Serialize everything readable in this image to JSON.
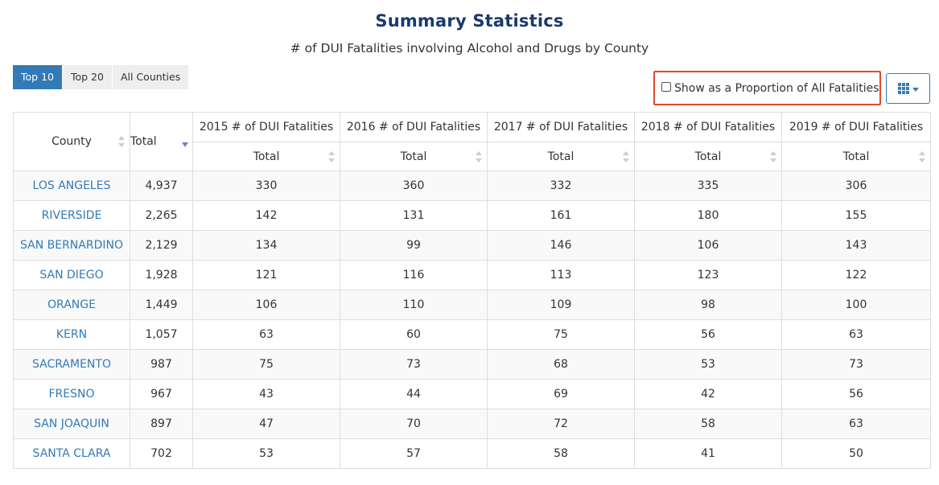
{
  "header": {
    "title": "Summary Statistics",
    "subtitle": "# of DUI Fatalities involving Alcohol and Drugs by County"
  },
  "tabs": [
    {
      "label": "Top 10",
      "active": true
    },
    {
      "label": "Top 20",
      "active": false
    },
    {
      "label": "All Counties",
      "active": false
    }
  ],
  "options": {
    "proportion_label": "Show as a Proportion of All Fatalities",
    "proportion_checked": false,
    "columns_button_icon": "grid-icon",
    "highlight_color": "#e04a2d",
    "accent_color": "#337ab7"
  },
  "table": {
    "county_header": "County",
    "total_header": "Total",
    "year_headers": [
      "2015 # of DUI Fatalities",
      "2016 # of DUI Fatalities",
      "2017 # of DUI Fatalities",
      "2018 # of DUI Fatalities",
      "2019 # of DUI Fatalities"
    ],
    "sub_header": "Total",
    "sort_column": "Total",
    "sort_direction": "descending",
    "rows": [
      {
        "county": "LOS ANGELES",
        "total": "4,937",
        "years": [
          "330",
          "360",
          "332",
          "335",
          "306"
        ]
      },
      {
        "county": "RIVERSIDE",
        "total": "2,265",
        "years": [
          "142",
          "131",
          "161",
          "180",
          "155"
        ]
      },
      {
        "county": "SAN BERNARDINO",
        "total": "2,129",
        "years": [
          "134",
          "99",
          "146",
          "106",
          "143"
        ]
      },
      {
        "county": "SAN DIEGO",
        "total": "1,928",
        "years": [
          "121",
          "116",
          "113",
          "123",
          "122"
        ]
      },
      {
        "county": "ORANGE",
        "total": "1,449",
        "years": [
          "106",
          "110",
          "109",
          "98",
          "100"
        ]
      },
      {
        "county": "KERN",
        "total": "1,057",
        "years": [
          "63",
          "60",
          "75",
          "56",
          "63"
        ]
      },
      {
        "county": "SACRAMENTO",
        "total": "987",
        "years": [
          "75",
          "73",
          "68",
          "53",
          "73"
        ]
      },
      {
        "county": "FRESNO",
        "total": "967",
        "years": [
          "43",
          "44",
          "69",
          "42",
          "56"
        ]
      },
      {
        "county": "SAN JOAQUIN",
        "total": "897",
        "years": [
          "47",
          "70",
          "72",
          "58",
          "63"
        ]
      },
      {
        "county": "SANTA CLARA",
        "total": "702",
        "years": [
          "53",
          "57",
          "58",
          "41",
          "50"
        ]
      }
    ]
  }
}
